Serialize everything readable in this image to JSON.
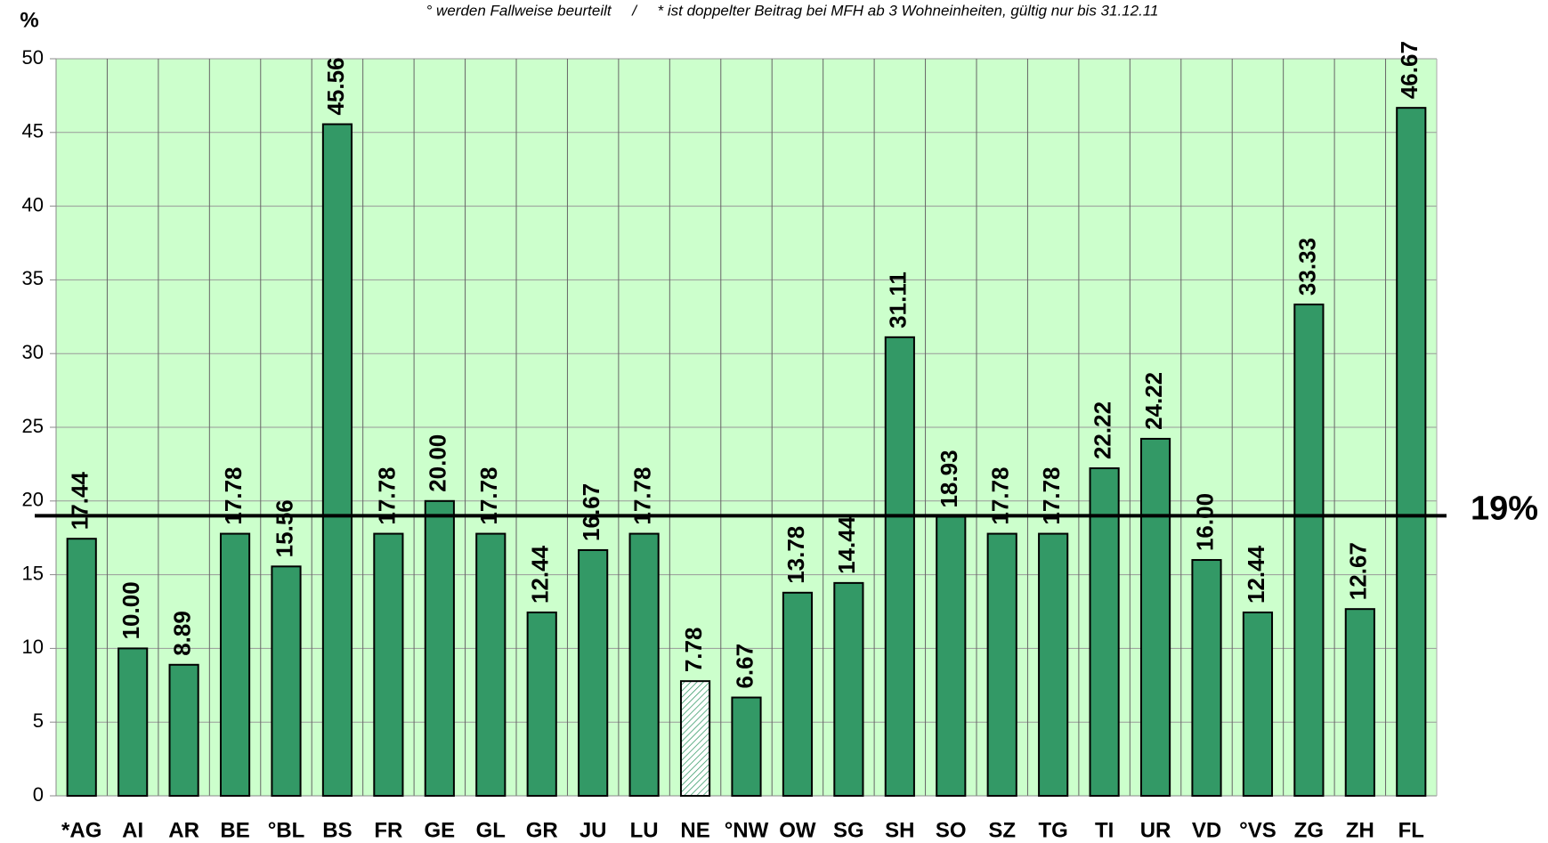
{
  "chart_data": {
    "type": "bar",
    "subtitle": "° werden Fallweise beurteilt     /     * ist doppelter Beitrag bei MFH ab 3 Wohneinheiten, gültig nur bis 31.12.11",
    "y_label": "%",
    "categories": [
      "*AG",
      "AI",
      "AR",
      "BE",
      "°BL",
      "BS",
      "FR",
      "GE",
      "GL",
      "GR",
      "JU",
      "LU",
      "NE",
      "°NW",
      "OW",
      "SG",
      "SH",
      "SO",
      "SZ",
      "TG",
      "TI",
      "UR",
      "VD",
      "°VS",
      "ZG",
      "ZH",
      "FL"
    ],
    "values": [
      17.44,
      10.0,
      8.89,
      17.78,
      15.56,
      45.56,
      17.78,
      20.0,
      17.78,
      12.44,
      16.67,
      17.78,
      7.78,
      6.67,
      13.78,
      14.44,
      31.11,
      18.93,
      17.78,
      17.78,
      22.22,
      24.22,
      16.0,
      12.44,
      33.33,
      12.67,
      46.67
    ],
    "value_labels": [
      "17.44",
      "10.00",
      "8.89",
      "17.78",
      "15.56",
      "45.56",
      "17.78",
      "20.00",
      "17.78",
      "12.44",
      "16.67",
      "17.78",
      "7.78",
      "6.67",
      "13.78",
      "14.44",
      "31.11",
      "18.93",
      "17.78",
      "17.78",
      "22.22",
      "24.22",
      "16.00",
      "12.44",
      "33.33",
      "12.67",
      "46.67"
    ],
    "color": "#339966",
    "background": "#ccffcc",
    "hatched_categories": [
      "NE"
    ],
    "reference_line": {
      "value": 19,
      "label": "19%"
    },
    "ylim": [
      0,
      50
    ],
    "yticks": [
      0,
      5,
      10,
      15,
      20,
      25,
      30,
      35,
      40,
      45,
      50
    ],
    "grid": true
  }
}
